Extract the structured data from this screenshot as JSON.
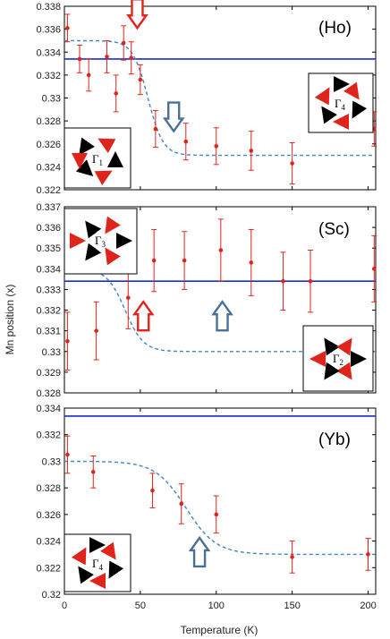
{
  "chart_data": [
    {
      "type": "scatter",
      "label": "(Ho)",
      "inset_label": "Γ",
      "inset_labels": [
        {
          "main": "Γ",
          "sub": "4"
        },
        {
          "main": "Γ",
          "sub": "1"
        }
      ],
      "ylim": [
        0.322,
        0.338
      ],
      "yticks": [
        "0.322",
        "0.324",
        "0.326",
        "0.328",
        "0.33",
        "0.332",
        "0.334",
        "0.336",
        "0.338"
      ],
      "xlim": [
        0,
        205
      ],
      "reference_line": 0.3334,
      "points": [
        {
          "x": 2,
          "y": 0.3361,
          "err": 0.0012
        },
        {
          "x": 10,
          "y": 0.3334,
          "err": 0.0012
        },
        {
          "x": 16,
          "y": 0.332,
          "err": 0.0014
        },
        {
          "x": 28,
          "y": 0.3336,
          "err": 0.0014
        },
        {
          "x": 34,
          "y": 0.3304,
          "err": 0.0016
        },
        {
          "x": 39,
          "y": 0.3348,
          "err": 0.0015
        },
        {
          "x": 44,
          "y": 0.3335,
          "err": 0.0014
        },
        {
          "x": 50,
          "y": 0.3316,
          "err": 0.0013
        },
        {
          "x": 60,
          "y": 0.3273,
          "err": 0.0016
        },
        {
          "x": 80,
          "y": 0.3262,
          "err": 0.0016
        },
        {
          "x": 100,
          "y": 0.3258,
          "err": 0.0016
        },
        {
          "x": 123,
          "y": 0.3254,
          "err": 0.0017
        },
        {
          "x": 150,
          "y": 0.3243,
          "err": 0.0018
        },
        {
          "x": 204,
          "y": 0.3273,
          "err": 0.0015
        }
      ],
      "fit": {
        "high": 0.335,
        "low": 0.325,
        "center": 55,
        "width": 5
      },
      "arrows": [
        {
          "x": 48,
          "y": 0.3372,
          "color": "#e0241b"
        },
        {
          "x": 72,
          "y": 0.3282,
          "color": "#4a7097"
        }
      ]
    },
    {
      "type": "scatter",
      "label": "(Sc)",
      "inset_labels": [
        {
          "main": "Γ",
          "sub": "3"
        },
        {
          "main": "Γ",
          "sub": "2"
        }
      ],
      "ylim": [
        0.328,
        0.337
      ],
      "yticks": [
        "0.328",
        "0.329",
        "0.33",
        "0.331",
        "0.332",
        "0.333",
        "0.334",
        "0.335",
        "0.336",
        "0.337"
      ],
      "xlim": [
        0,
        205
      ],
      "reference_line": 0.3334,
      "points": [
        {
          "x": 2,
          "y": 0.3305,
          "err": 0.0014
        },
        {
          "x": 21,
          "y": 0.331,
          "err": 0.0014
        },
        {
          "x": 42,
          "y": 0.3326,
          "err": 0.0015
        },
        {
          "x": 59,
          "y": 0.3344,
          "err": 0.0015
        },
        {
          "x": 79,
          "y": 0.3344,
          "err": 0.0014
        },
        {
          "x": 103,
          "y": 0.3349,
          "err": 0.0015
        },
        {
          "x": 123,
          "y": 0.3343,
          "err": 0.0016
        },
        {
          "x": 144,
          "y": 0.3334,
          "err": 0.0014
        },
        {
          "x": 162,
          "y": 0.3334,
          "err": 0.0015
        },
        {
          "x": 204,
          "y": 0.334,
          "err": 0.0016
        }
      ],
      "fit": {
        "high": 0.334,
        "low": 0.33,
        "center": 40,
        "width": 6
      },
      "arrows": [
        {
          "x": 52,
          "y": 0.3318,
          "color": "#e0241b"
        },
        {
          "x": 104,
          "y": 0.3318,
          "color": "#4a7097"
        }
      ]
    },
    {
      "type": "scatter",
      "label": "(Yb)",
      "inset_labels": [
        {
          "main": "Γ",
          "sub": "4"
        }
      ],
      "ylim": [
        0.32,
        0.334
      ],
      "yticks": [
        "0.32",
        "0.322",
        "0.324",
        "0.326",
        "0.328",
        "0.33",
        "0.332",
        "0.334"
      ],
      "xlim": [
        0,
        205
      ],
      "reference_line": 0.3334,
      "points": [
        {
          "x": 2,
          "y": 0.3305,
          "err": 0.0014
        },
        {
          "x": 19,
          "y": 0.3292,
          "err": 0.0012
        },
        {
          "x": 58,
          "y": 0.3278,
          "err": 0.0013
        },
        {
          "x": 77,
          "y": 0.3268,
          "err": 0.0015
        },
        {
          "x": 100,
          "y": 0.326,
          "err": 0.0014
        },
        {
          "x": 150,
          "y": 0.3228,
          "err": 0.0012
        },
        {
          "x": 200,
          "y": 0.323,
          "err": 0.0012
        }
      ],
      "fit": {
        "high": 0.33,
        "low": 0.323,
        "center": 80,
        "width": 10
      },
      "arrows": [
        {
          "x": 89,
          "y": 0.3233,
          "color": "#4a7097"
        }
      ]
    }
  ],
  "xticks": [
    "0",
    "50",
    "100",
    "150",
    "200"
  ],
  "xlabel": "Temperature (K)",
  "ylabel": "Mn position (x)",
  "colors": {
    "points": "#e0241b",
    "reference": "#1a2fd0",
    "fit": "#3f86c8",
    "axis": "#000000"
  }
}
